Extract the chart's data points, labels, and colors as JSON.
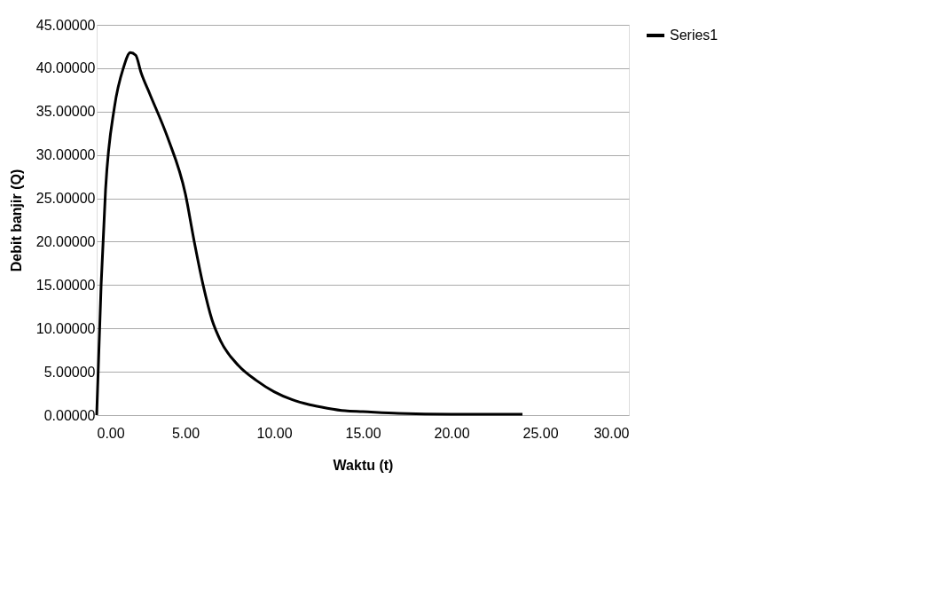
{
  "chart_data": {
    "type": "line",
    "xlabel": "Waktu (t)",
    "ylabel": "Debit banjir (Q)",
    "xlim": [
      0,
      30
    ],
    "ylim": [
      0,
      45
    ],
    "xticks": [
      {
        "value": 0,
        "label": "0.00"
      },
      {
        "value": 5,
        "label": "5.00"
      },
      {
        "value": 10,
        "label": "10.00"
      },
      {
        "value": 15,
        "label": "15.00"
      },
      {
        "value": 20,
        "label": "20.00"
      },
      {
        "value": 25,
        "label": "25.00"
      },
      {
        "value": 30,
        "label": "30.00"
      }
    ],
    "yticks": [
      {
        "value": 0,
        "label": "0.00000"
      },
      {
        "value": 5,
        "label": "5.00000"
      },
      {
        "value": 10,
        "label": "10.00000"
      },
      {
        "value": 15,
        "label": "15.00000"
      },
      {
        "value": 20,
        "label": "20.00000"
      },
      {
        "value": 25,
        "label": "25.00000"
      },
      {
        "value": 30,
        "label": "30.00000"
      },
      {
        "value": 35,
        "label": "35.00000"
      },
      {
        "value": 40,
        "label": "40.00000"
      },
      {
        "value": 45,
        "label": "45.00000"
      }
    ],
    "grid": "y",
    "legend": "right",
    "marker": "none",
    "line_style": "solid",
    "series": [
      {
        "name": "Series1",
        "color": "#000000",
        "x": [
          0,
          0.25,
          0.5,
          1,
          1.5,
          1.9,
          2.2,
          2.5,
          3,
          4,
          5,
          5.5,
          6,
          6.5,
          7,
          8,
          9,
          10,
          11,
          12,
          13,
          14,
          15,
          17,
          20,
          24
        ],
        "values": [
          0,
          15,
          26,
          35.5,
          40,
          41.8,
          41.5,
          39.5,
          37,
          32,
          25.5,
          20,
          15,
          11,
          8.5,
          5.7,
          4,
          2.7,
          1.8,
          1.2,
          0.8,
          0.5,
          0.4,
          0.2,
          0.1,
          0.1
        ]
      }
    ]
  }
}
